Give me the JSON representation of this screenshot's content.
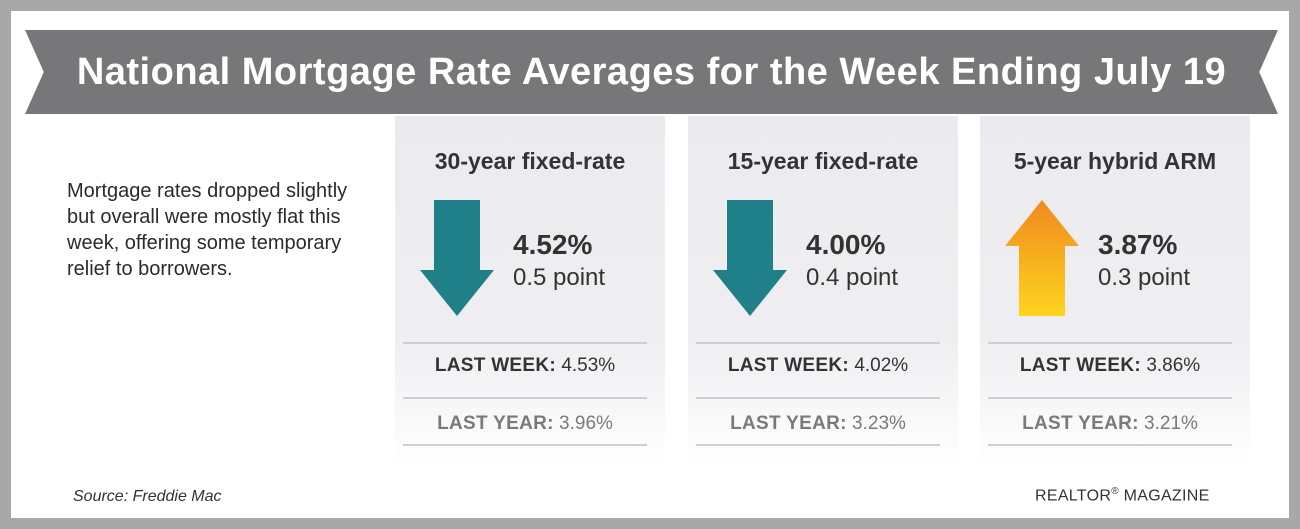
{
  "title": "National Mortgage Rate Averages for the Week Ending July 19",
  "intro": "Mortgage rates dropped slightly but overall were mostly flat this week, offering some temporary relief to borrowers.",
  "cards": [
    {
      "title": "30-year fixed-rate",
      "direction": "down",
      "arrow_color": "#1f8089",
      "rate": "4.52%",
      "change": "0.5 point",
      "last_week_label": "LAST WEEK:",
      "last_week_value": "4.53%",
      "last_year_label": "LAST YEAR:",
      "last_year_value": "3.96%"
    },
    {
      "title": "15-year fixed-rate",
      "direction": "down",
      "arrow_color": "#1f8089",
      "rate": "4.00%",
      "change": "0.4 point",
      "last_week_label": "LAST WEEK:",
      "last_week_value": "4.02%",
      "last_year_label": "LAST YEAR:",
      "last_year_value": "3.23%"
    },
    {
      "title": "5-year hybrid ARM",
      "direction": "up",
      "arrow_color_top": "#f08a1e",
      "arrow_color_bottom": "#fcd41f",
      "rate": "3.87%",
      "change": "0.3 point",
      "last_week_label": "LAST WEEK:",
      "last_week_value": "3.86%",
      "last_year_label": "LAST YEAR:",
      "last_year_value": "3.21%"
    }
  ],
  "source": "Source: Freddie Mac",
  "brand": "REALTOR",
  "brand_mark": "®",
  "brand_suffix": " MAGAZINE"
}
